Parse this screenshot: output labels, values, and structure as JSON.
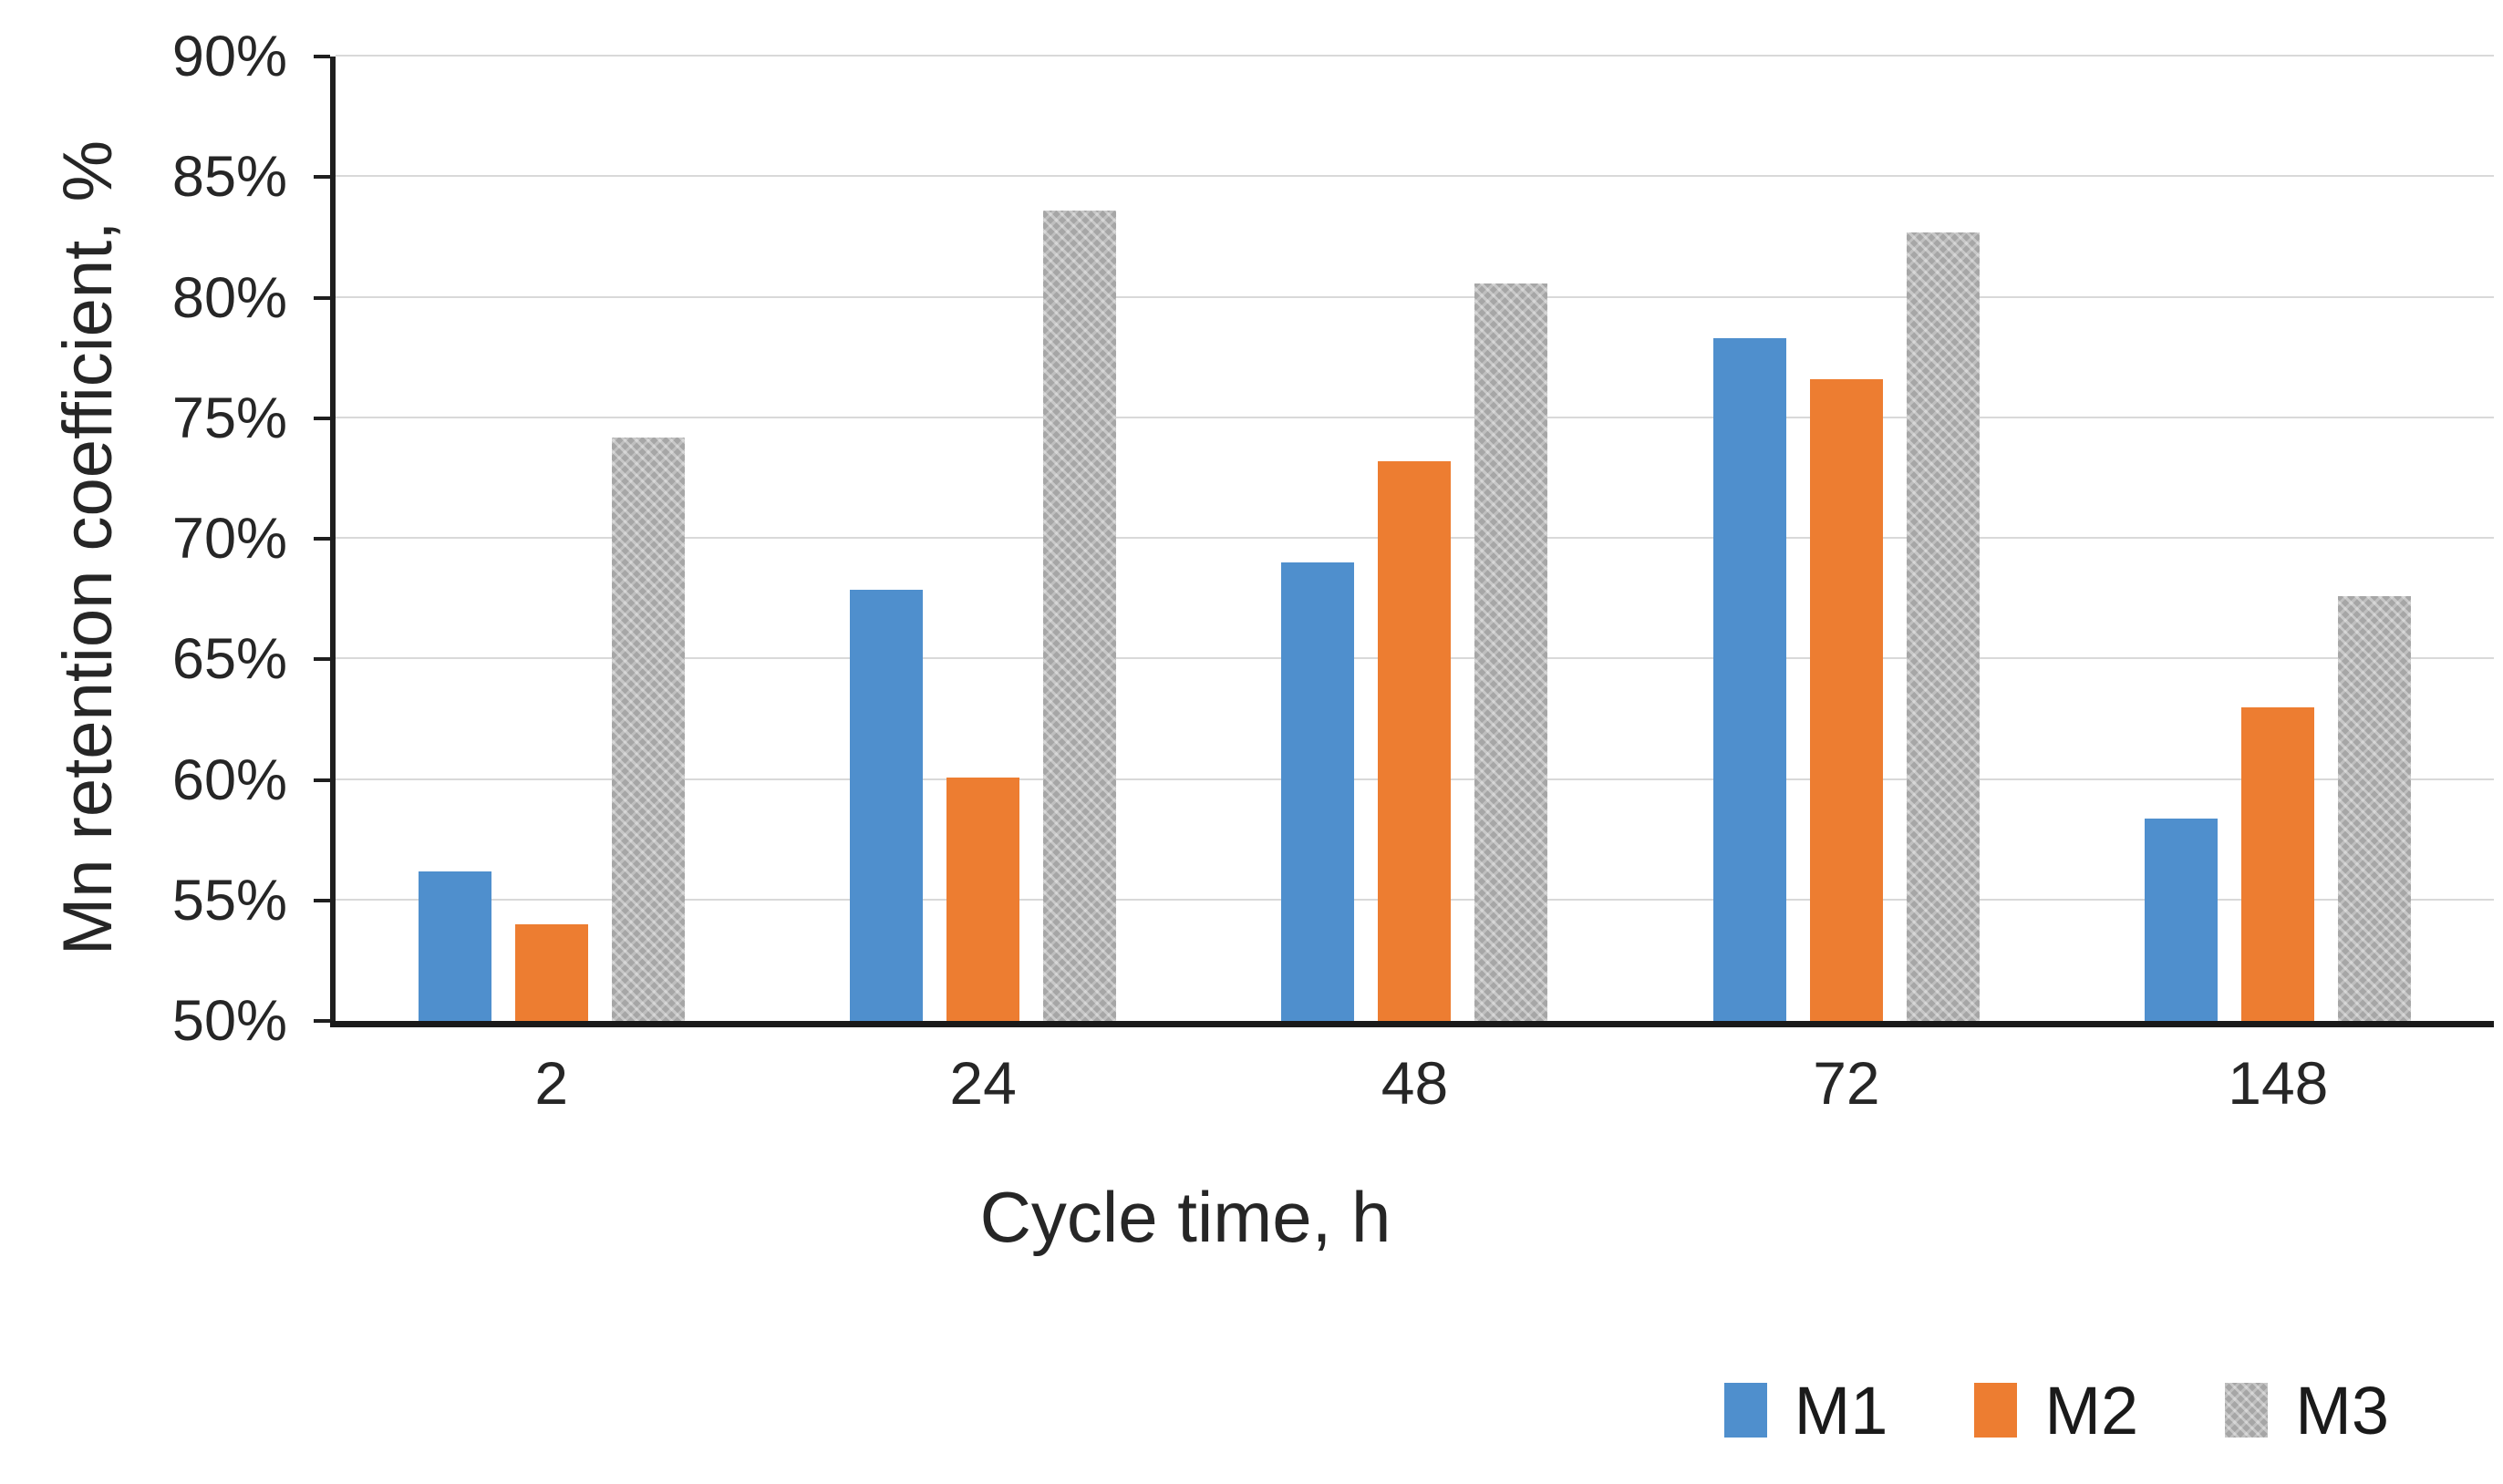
{
  "chart_data": {
    "type": "bar",
    "title": "",
    "xlabel": "Cycle time, h",
    "ylabel": "Mn retention coefficient, %",
    "categories": [
      "2",
      "24",
      "48",
      "72",
      "148"
    ],
    "series": [
      {
        "name": "M1",
        "color": "#4f8fcd",
        "pattern": "solid",
        "values": [
          56.2,
          67.9,
          69.0,
          78.3,
          58.4
        ]
      },
      {
        "name": "M2",
        "color": "#ed7d31",
        "pattern": "solid",
        "values": [
          54.0,
          60.1,
          73.2,
          76.6,
          63.0
        ]
      },
      {
        "name": "M3",
        "color": "#a6a6a6",
        "pattern": "crosshatch",
        "values": [
          74.2,
          83.6,
          80.6,
          82.7,
          67.6
        ]
      }
    ],
    "ylim": [
      50,
      90
    ],
    "ytick_step": 5,
    "yticks": [
      "50%",
      "55%",
      "60%",
      "65%",
      "70%",
      "75%",
      "80%",
      "85%",
      "90%"
    ],
    "grid": "horizontal",
    "gridline_color": "#d9d9d9",
    "axis_color": "#1f1f1f",
    "label_color": "#262626",
    "legend_position": "bottom-right"
  }
}
